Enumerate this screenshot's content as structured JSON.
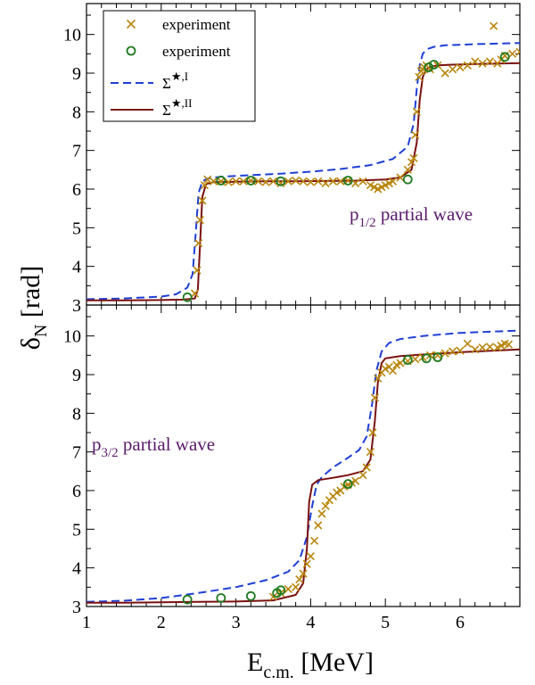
{
  "chart_data": [
    {
      "type": "line",
      "panel": "top",
      "annotation": {
        "main": "p",
        "sub": "1/2",
        "rest": " partial wave",
        "color": "#5a1a6a"
      },
      "xlabel": "",
      "ylabel": "",
      "xlim": [
        1,
        6.8
      ],
      "ylim": [
        3,
        10.8
      ],
      "xticks": [
        1,
        2,
        3,
        4,
        5,
        6
      ],
      "yticks": [
        3,
        4,
        5,
        6,
        7,
        8,
        9,
        10
      ],
      "legend": {
        "placement": "top-left",
        "entries": [
          {
            "label": "experiment",
            "marker": "x",
            "color": "#b8860b"
          },
          {
            "label": "experiment",
            "marker": "circle",
            "color": "#1f7a1f"
          },
          {
            "label": "Σ★,I",
            "main": "Σ",
            "sup": "★,I",
            "line": "dashed",
            "color": "#1f3fd6"
          },
          {
            "label": "Σ★,II",
            "main": "Σ",
            "sup": "★,II",
            "line": "solid",
            "color": "#7a1010"
          }
        ]
      },
      "series": [
        {
          "label": "Σ★,I",
          "style": "dashed",
          "color": "#1f3fd6",
          "x": [
            1.0,
            1.5,
            2.0,
            2.2,
            2.35,
            2.42,
            2.46,
            2.5,
            2.55,
            2.62,
            2.8,
            3.2,
            3.6,
            4.0,
            4.4,
            4.8,
            5.1,
            5.3,
            5.38,
            5.42,
            5.46,
            5.5,
            5.56,
            5.65,
            5.8,
            6.2,
            6.8
          ],
          "y": [
            3.15,
            3.17,
            3.22,
            3.28,
            3.45,
            3.8,
            4.8,
            5.9,
            6.2,
            6.27,
            6.32,
            6.36,
            6.4,
            6.45,
            6.52,
            6.62,
            6.78,
            7.1,
            7.7,
            8.6,
            9.2,
            9.5,
            9.62,
            9.68,
            9.72,
            9.75,
            9.78
          ]
        },
        {
          "label": "Σ★,II",
          "style": "solid",
          "color": "#7a1010",
          "x": [
            1.0,
            1.5,
            2.0,
            2.3,
            2.45,
            2.49,
            2.52,
            2.55,
            2.6,
            2.7,
            3.0,
            3.4,
            3.8,
            4.2,
            4.6,
            5.0,
            5.2,
            5.35,
            5.42,
            5.46,
            5.5,
            5.55,
            5.6,
            5.7,
            5.9,
            6.3,
            6.8
          ],
          "y": [
            3.12,
            3.12,
            3.13,
            3.14,
            3.17,
            3.4,
            4.6,
            5.8,
            6.13,
            6.18,
            6.19,
            6.2,
            6.2,
            6.21,
            6.22,
            6.25,
            6.3,
            6.5,
            7.2,
            8.3,
            8.9,
            9.1,
            9.16,
            9.2,
            9.22,
            9.24,
            9.26
          ]
        }
      ],
      "experiment_x": {
        "x": [
          2.45,
          2.48,
          2.5,
          2.52,
          2.55,
          2.58,
          2.62,
          2.7,
          2.8,
          2.9,
          3.0,
          3.1,
          3.2,
          3.3,
          3.4,
          3.5,
          3.6,
          3.7,
          3.8,
          3.9,
          4.0,
          4.1,
          4.2,
          4.3,
          4.4,
          4.5,
          4.6,
          4.7,
          4.8,
          4.85,
          4.9,
          4.95,
          5.0,
          5.05,
          5.1,
          5.2,
          5.3,
          5.35,
          5.38,
          5.4,
          5.42,
          5.45,
          5.48,
          5.5,
          5.52,
          5.55,
          5.6,
          5.7,
          5.8,
          5.9,
          6.0,
          6.1,
          6.2,
          6.3,
          6.4,
          6.45,
          6.5,
          6.55,
          6.6,
          6.7,
          6.8
        ],
        "y": [
          3.3,
          3.9,
          4.6,
          5.2,
          5.7,
          6.1,
          6.25,
          6.2,
          6.2,
          6.18,
          6.2,
          6.2,
          6.22,
          6.2,
          6.18,
          6.2,
          6.15,
          6.2,
          6.22,
          6.2,
          6.18,
          6.2,
          6.15,
          6.2,
          6.2,
          6.22,
          6.15,
          6.2,
          6.1,
          6.05,
          6.0,
          6.05,
          6.1,
          6.15,
          6.2,
          6.3,
          6.5,
          6.7,
          6.8,
          7.4,
          8.0,
          8.9,
          9.05,
          9.1,
          9.15,
          9.2,
          9.1,
          9.2,
          9.0,
          9.1,
          9.15,
          9.2,
          9.3,
          9.25,
          9.3,
          10.22,
          9.25,
          9.35,
          9.45,
          9.5,
          9.55
        ]
      },
      "experiment_o": {
        "x": [
          2.35,
          2.8,
          3.2,
          3.6,
          4.5,
          5.3,
          5.58,
          5.65,
          6.6
        ],
        "y": [
          3.2,
          6.22,
          6.22,
          6.2,
          6.22,
          6.25,
          9.15,
          9.22,
          9.42
        ]
      }
    },
    {
      "type": "line",
      "panel": "bottom",
      "annotation": {
        "main": "p",
        "sub": "3/2",
        "rest": " partial wave",
        "color": "#5a1a6a"
      },
      "xlabel": "E",
      "xlabel_sub": "c.m.",
      "xlabel_rest": " [MeV]",
      "ylabel": "δ",
      "ylabel_sub": "N",
      "ylabel_rest": " [rad]",
      "xlim": [
        1,
        6.8
      ],
      "ylim": [
        3,
        10.8
      ],
      "xticks": [
        1,
        2,
        3,
        4,
        5,
        6
      ],
      "yticks": [
        3,
        4,
        5,
        6,
        7,
        8,
        9,
        10
      ],
      "series": [
        {
          "label": "Σ★,I",
          "style": "dashed",
          "color": "#1f3fd6",
          "x": [
            1.0,
            1.5,
            2.0,
            2.5,
            3.0,
            3.4,
            3.7,
            3.85,
            3.95,
            4.02,
            4.08,
            4.15,
            4.3,
            4.5,
            4.65,
            4.75,
            4.82,
            4.88,
            4.95,
            5.05,
            5.2,
            5.5,
            6.0,
            6.8
          ],
          "y": [
            3.12,
            3.15,
            3.22,
            3.35,
            3.5,
            3.68,
            3.9,
            4.2,
            4.8,
            5.6,
            6.15,
            6.35,
            6.6,
            6.85,
            7.05,
            7.4,
            8.2,
            9.1,
            9.6,
            9.82,
            9.92,
            10.0,
            10.08,
            10.14
          ]
        },
        {
          "label": "Σ★,II",
          "style": "solid",
          "color": "#7a1010",
          "x": [
            1.0,
            1.5,
            2.0,
            2.5,
            3.0,
            3.5,
            3.8,
            3.9,
            3.95,
            3.98,
            4.02,
            4.1,
            4.3,
            4.5,
            4.7,
            4.8,
            4.86,
            4.9,
            4.95,
            5.0,
            5.2,
            5.5,
            6.0,
            6.8
          ],
          "y": [
            3.1,
            3.1,
            3.11,
            3.12,
            3.13,
            3.16,
            3.3,
            3.6,
            4.5,
            5.7,
            6.15,
            6.27,
            6.33,
            6.4,
            6.5,
            6.8,
            7.8,
            8.8,
            9.3,
            9.42,
            9.48,
            9.52,
            9.58,
            9.65
          ]
        }
      ],
      "experiment_x": {
        "x": [
          3.5,
          3.6,
          3.7,
          3.8,
          3.85,
          3.9,
          3.95,
          4.0,
          4.05,
          4.1,
          4.15,
          4.2,
          4.25,
          4.3,
          4.35,
          4.4,
          4.45,
          4.5,
          4.55,
          4.6,
          4.7,
          4.75,
          4.8,
          4.83,
          4.86,
          4.9,
          4.95,
          5.0,
          5.05,
          5.1,
          5.15,
          5.2,
          5.3,
          5.4,
          5.5,
          5.6,
          5.7,
          5.8,
          5.9,
          6.0,
          6.1,
          6.2,
          6.3,
          6.4,
          6.5,
          6.55,
          6.6,
          6.65
        ],
        "y": [
          3.25,
          3.35,
          3.45,
          3.5,
          3.7,
          3.85,
          4.1,
          4.3,
          4.7,
          5.1,
          5.4,
          5.6,
          5.75,
          5.85,
          5.95,
          6.0,
          6.1,
          6.15,
          6.2,
          6.25,
          6.4,
          6.6,
          7.0,
          7.5,
          8.4,
          8.9,
          9.05,
          9.15,
          9.2,
          9.1,
          9.25,
          9.3,
          9.35,
          9.4,
          9.45,
          9.5,
          9.5,
          9.55,
          9.6,
          9.62,
          9.8,
          9.65,
          9.7,
          9.72,
          9.7,
          9.75,
          9.8,
          9.78
        ]
      },
      "experiment_o": {
        "x": [
          2.35,
          2.8,
          3.2,
          3.55,
          3.6,
          4.5,
          5.3,
          5.55,
          5.7
        ],
        "y": [
          3.18,
          3.22,
          3.27,
          3.35,
          3.42,
          6.17,
          9.38,
          9.42,
          9.45
        ]
      }
    }
  ]
}
